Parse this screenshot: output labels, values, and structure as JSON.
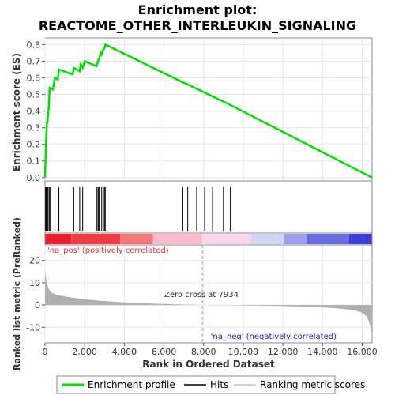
{
  "chart_data": {
    "type": "line",
    "title_line1": "Enrichment plot:",
    "title_line2": "REACTOME_OTHER_INTERLEUKIN_SIGNALING",
    "xlabel": "Rank in Ordered Dataset",
    "ylabel_top": "Enrichment score (ES)",
    "ylabel_bottom": "Ranked list metric (PreRanked)",
    "x_range": [
      0,
      16500
    ],
    "x_ticks": [
      0,
      2000,
      4000,
      6000,
      8000,
      10000,
      12000,
      14000,
      16000
    ],
    "x_tick_labels": [
      "0",
      "2,000",
      "4,000",
      "6,000",
      "8,000",
      "10,000",
      "12,000",
      "14,000",
      "16,000"
    ],
    "es_range": [
      -0.02,
      0.84
    ],
    "es_ticks": [
      0.0,
      0.1,
      0.2,
      0.3,
      0.4,
      0.5,
      0.6,
      0.7,
      0.8
    ],
    "es_tick_labels": [
      "0.0",
      "0.1",
      "0.2",
      "0.3",
      "0.4",
      "0.5",
      "0.6",
      "0.7",
      "0.8"
    ],
    "metric_range": [
      -17,
      27
    ],
    "metric_ticks": [
      20,
      10,
      0,
      -10
    ],
    "metric_tick_labels": [
      "20",
      "10",
      "0",
      "-10"
    ],
    "series": [
      {
        "name": "Enrichment profile",
        "color": "#00e000",
        "x": [
          0,
          50,
          100,
          120,
          200,
          230,
          400,
          500,
          650,
          700,
          1400,
          1450,
          1750,
          1800,
          1900,
          2000,
          2600,
          2650,
          2700,
          2750,
          2800,
          2850,
          2900,
          2950,
          3000,
          3050,
          7000,
          7200,
          9300,
          16500
        ],
        "y": [
          0.0,
          0.21,
          0.34,
          0.33,
          0.44,
          0.54,
          0.53,
          0.6,
          0.59,
          0.65,
          0.62,
          0.66,
          0.64,
          0.68,
          0.66,
          0.7,
          0.67,
          0.69,
          0.71,
          0.72,
          0.75,
          0.74,
          0.76,
          0.77,
          0.78,
          0.8,
          0.57,
          0.56,
          0.44,
          0.0
        ]
      }
    ],
    "hits": [
      30,
      60,
      110,
      150,
      210,
      250,
      500,
      700,
      1450,
      1750,
      1900,
      2620,
      2680,
      2720,
      2760,
      2860,
      2940,
      3000,
      3040,
      6950,
      7200,
      7650,
      8050,
      8450,
      9000,
      9350
    ],
    "zero_cross": 7934,
    "zero_cross_label": "Zero cross at 7934",
    "pos_label": "'na_pos' (positively correlated)",
    "neg_label": "'na_neg' (negatively correlated)",
    "legend": [
      {
        "label": "Enrichment profile",
        "color": "#00e000"
      },
      {
        "label": "Hits",
        "color": "#000000"
      },
      {
        "label": "Ranking metric scores",
        "color": "#c0c0c0"
      }
    ],
    "colors": {
      "es_line": "#00e000",
      "hit": "#000000",
      "metric_fill": "#b0b0b0",
      "pos_text": "#e03030",
      "neg_text": "#2020c0"
    },
    "colorbar": [
      "#e81f2f",
      "#ef3b45",
      "#f5777a",
      "#fabbd2",
      "#fbd6ea",
      "#d4d4f8",
      "#a0a0ee",
      "#6c6ce0",
      "#3e3ed6",
      "#1414c8"
    ]
  }
}
